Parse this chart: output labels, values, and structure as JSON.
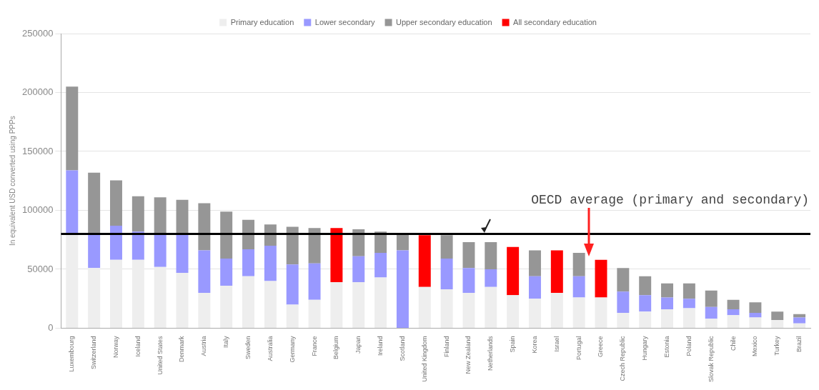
{
  "chart_data": {
    "type": "bar",
    "stacked": true,
    "ylabel": "In equivalent USD converted using PPPs",
    "categories": [
      "Luxembourg",
      "Switzerland",
      "Norway",
      "Iceland",
      "United States",
      "Denmark",
      "Austria",
      "Italy",
      "Sweden",
      "Australia",
      "Germany",
      "France",
      "Belgium",
      "Japan",
      "Ireland",
      "Scotland",
      "United Kingdom",
      "Finland",
      "New Zealand",
      "Netherlands",
      "Spain",
      "Korea",
      "Israel",
      "Portugal",
      "Greece",
      "Czech Republic",
      "Hungary",
      "Estonia",
      "Poland",
      "Slovak Republic",
      "Chile",
      "Mexico",
      "Turkey",
      "Brazil"
    ],
    "series": [
      {
        "name": "Primary education",
        "color": "#eeeeee",
        "values": [
          80000,
          51000,
          58000,
          58000,
          52000,
          47000,
          30000,
          36000,
          44000,
          40000,
          20000,
          24000,
          39000,
          39000,
          43000,
          0,
          35000,
          33000,
          30000,
          35000,
          28000,
          25000,
          30000,
          26000,
          26000,
          13000,
          14000,
          16000,
          17000,
          8000,
          11000,
          9000,
          7000,
          4000
        ]
      },
      {
        "name": "Lower secondary",
        "color": "#9999ff",
        "values": [
          54000,
          29000,
          29000,
          24000,
          28000,
          33000,
          36000,
          23000,
          23000,
          30000,
          34000,
          31000,
          null,
          22000,
          21000,
          66000,
          null,
          26000,
          21000,
          15000,
          null,
          19000,
          null,
          18000,
          null,
          18000,
          14000,
          10000,
          8000,
          10000,
          5000,
          4000,
          null,
          5000
        ]
      },
      {
        "name": "Upper secondary education",
        "color": "#969696",
        "values": [
          71000,
          52000,
          38500,
          30000,
          31000,
          29000,
          40000,
          40000,
          25000,
          18000,
          32000,
          30000,
          null,
          23000,
          18000,
          14000,
          null,
          20000,
          22000,
          23000,
          null,
          22000,
          null,
          20000,
          null,
          20000,
          16000,
          12000,
          13000,
          14000,
          8000,
          9000,
          7000,
          3000
        ]
      },
      {
        "name": "All secondary education",
        "color": "#ff0000",
        "values": [
          null,
          null,
          null,
          null,
          null,
          null,
          null,
          null,
          null,
          null,
          null,
          null,
          46000,
          null,
          null,
          null,
          44000,
          null,
          null,
          null,
          41000,
          null,
          36000,
          null,
          32000,
          null,
          null,
          null,
          null,
          null,
          null,
          null,
          null,
          null
        ]
      }
    ],
    "ylim": [
      0,
      250000
    ],
    "yticks": [
      0,
      50000,
      100000,
      150000,
      200000,
      250000
    ],
    "grid": "y",
    "legend": "top",
    "ref_lines": [
      {
        "axis": "y",
        "value": 80000,
        "label": "OECD average (primary and secondary)",
        "color": "#000000"
      }
    ]
  }
}
